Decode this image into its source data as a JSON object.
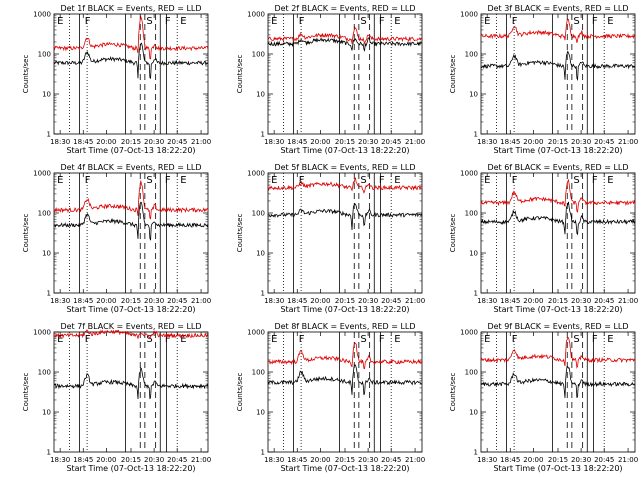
{
  "chart_data": [
    {
      "type": "line",
      "title": "Det 1f BLACK = Events, RED = LLD",
      "xlabel": "Start Time (07-Oct-13 18:22:20)",
      "ylabel": "Counts/sec",
      "series": [
        {
          "color": "#000000",
          "base": 60,
          "peak": 3.2,
          "dip": 0.3
        },
        {
          "color": "#dd0000",
          "base": 140,
          "peak": 5.5,
          "dip": 0.5
        }
      ]
    },
    {
      "type": "line",
      "title": "Det 2f BLACK = Events, RED = LLD",
      "xlabel": "Start Time (07-Oct-13 18:22:20)",
      "ylabel": "Counts/sec",
      "series": [
        {
          "color": "#000000",
          "base": 180,
          "peak": 1.3,
          "dip": 0.6
        },
        {
          "color": "#dd0000",
          "base": 240,
          "peak": 1.9,
          "dip": 0.75
        }
      ]
    },
    {
      "type": "line",
      "title": "Det 3f BLACK = Events, RED = LLD",
      "xlabel": "Start Time (07-Oct-13 18:22:20)",
      "ylabel": "Counts/sec",
      "series": [
        {
          "color": "#000000",
          "base": 50,
          "peak": 2.2,
          "dip": 0.4
        },
        {
          "color": "#dd0000",
          "base": 280,
          "peak": 2.5,
          "dip": 0.7
        }
      ]
    },
    {
      "type": "line",
      "title": "Det 4f BLACK = Events, RED = LLD",
      "xlabel": "Start Time (07-Oct-13 18:22:20)",
      "ylabel": "Counts/sec",
      "series": [
        {
          "color": "#000000",
          "base": 50,
          "peak": 3.6,
          "dip": 0.3
        },
        {
          "color": "#dd0000",
          "base": 120,
          "peak": 5.0,
          "dip": 0.5
        }
      ]
    },
    {
      "type": "line",
      "title": "Det 5f BLACK = Events, RED = LLD",
      "xlabel": "Start Time (07-Oct-13 18:22:20)",
      "ylabel": "Counts/sec",
      "series": [
        {
          "color": "#000000",
          "base": 90,
          "peak": 1.9,
          "dip": 0.4
        },
        {
          "color": "#dd0000",
          "base": 430,
          "peak": 1.6,
          "dip": 0.75
        }
      ]
    },
    {
      "type": "line",
      "title": "Det 6f BLACK = Events, RED = LLD",
      "xlabel": "Start Time (07-Oct-13 18:22:20)",
      "ylabel": "Counts/sec",
      "series": [
        {
          "color": "#000000",
          "base": 60,
          "peak": 3.0,
          "dip": 0.35
        },
        {
          "color": "#dd0000",
          "base": 180,
          "peak": 3.5,
          "dip": 0.55
        }
      ]
    },
    {
      "type": "line",
      "title": "Det 7f BLACK = Events, RED = LLD",
      "xlabel": "Start Time (07-Oct-13 18:22:20)",
      "ylabel": "Counts/sec",
      "series": [
        {
          "color": "#000000",
          "base": 45,
          "peak": 2.6,
          "dip": 0.4
        },
        {
          "color": "#dd0000",
          "base": 820,
          "peak": 1.2,
          "dip": 0.9
        }
      ]
    },
    {
      "type": "line",
      "title": "Det 8f BLACK = Events, RED = LLD",
      "xlabel": "Start Time (07-Oct-13 18:22:20)",
      "ylabel": "Counts/sec",
      "series": [
        {
          "color": "#000000",
          "base": 55,
          "peak": 2.6,
          "dip": 0.4
        },
        {
          "color": "#dd0000",
          "base": 180,
          "peak": 3.2,
          "dip": 0.55
        }
      ]
    },
    {
      "type": "line",
      "title": "Det 9f BLACK = Events, RED = LLD",
      "xlabel": "Start Time (07-Oct-13 18:22:20)",
      "ylabel": "Counts/sec",
      "series": [
        {
          "color": "#000000",
          "base": 50,
          "peak": 2.8,
          "dip": 0.35
        },
        {
          "color": "#dd0000",
          "base": 200,
          "peak": 4.0,
          "dip": 0.55
        }
      ]
    }
  ],
  "axes": {
    "x_ticks": [
      "18:30",
      "18:45",
      "20:00",
      "20:15",
      "20:30",
      "20:45",
      "21:00"
    ],
    "y_ticks": [
      "1",
      "10",
      "100",
      "1000"
    ],
    "ylim": [
      1,
      1000
    ],
    "yscale": "log"
  },
  "segment_labels": [
    "E",
    "F",
    "S",
    "F",
    "E"
  ]
}
